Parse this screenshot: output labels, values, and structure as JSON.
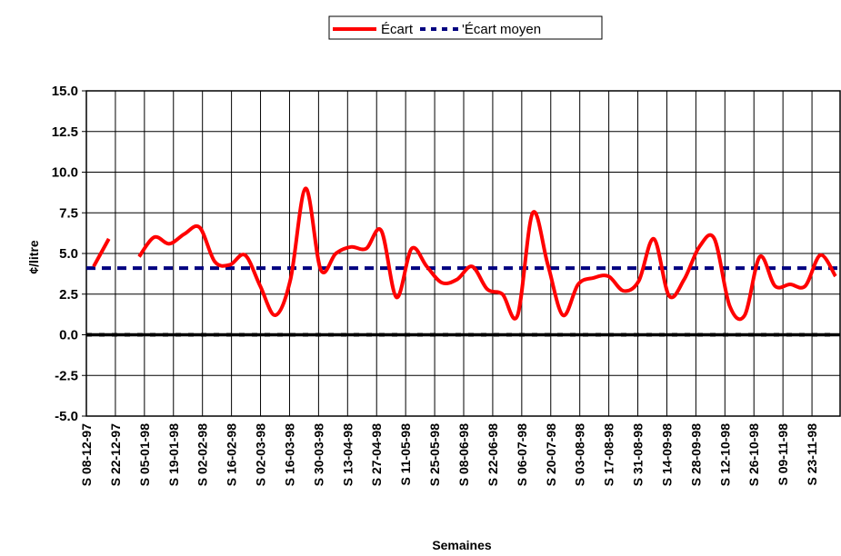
{
  "chart_data": {
    "type": "line",
    "title": "",
    "xlabel": "Semaines",
    "ylabel": "¢/litre",
    "ylim": [
      -5.0,
      15.0
    ],
    "y_ticks": [
      "15.0",
      "12.5",
      "10.0",
      "7.5",
      "5.0",
      "2.5",
      "0.0",
      "-2.5",
      "-5.0"
    ],
    "grid": true,
    "legend": {
      "placement": "top-center",
      "entries": [
        "Écart",
        "'Écart moyen"
      ]
    },
    "x_tick_labels": [
      "S 08-12-97",
      "S 22-12-97",
      "S 05-01-98",
      "S 19-01-98",
      "S 02-02-98",
      "S 16-02-98",
      "S 02-03-98",
      "S 16-03-98",
      "S 30-03-98",
      "S 13-04-98",
      "S 27-04-98",
      "S 11-05-98",
      "S 25-05-98",
      "S 08-06-98",
      "S 22-06-98",
      "S 06-07-98",
      "S 20-07-98",
      "S 03-08-98",
      "S 17-08-98",
      "S 31-08-98",
      "S 14-09-98",
      "S 28-09-98",
      "S 12-10-98",
      "S 26-10-98",
      "S 09-11-98",
      "S 23-11-98"
    ],
    "series": [
      {
        "name": "Écart",
        "color": "#ff0000",
        "style": "solid",
        "values": [
          4.2,
          5.9,
          null,
          4.8,
          6.0,
          5.6,
          6.2,
          6.6,
          4.5,
          4.3,
          4.9,
          3.0,
          1.2,
          3.4,
          9.0,
          4.0,
          5.0,
          5.4,
          5.3,
          6.4,
          2.3,
          5.3,
          4.2,
          3.2,
          3.4,
          4.2,
          2.8,
          2.5,
          1.2,
          7.5,
          4.3,
          1.2,
          3.1,
          3.5,
          3.6,
          2.7,
          3.3,
          5.9,
          2.4,
          3.4,
          5.4,
          5.9,
          1.8,
          1.2,
          4.8,
          3.0,
          3.1,
          3.0,
          4.9,
          3.6
        ]
      },
      {
        "name": "'Écart moyen",
        "color": "#000080",
        "style": "dashed",
        "values": [
          4.1,
          4.1
        ]
      }
    ]
  }
}
